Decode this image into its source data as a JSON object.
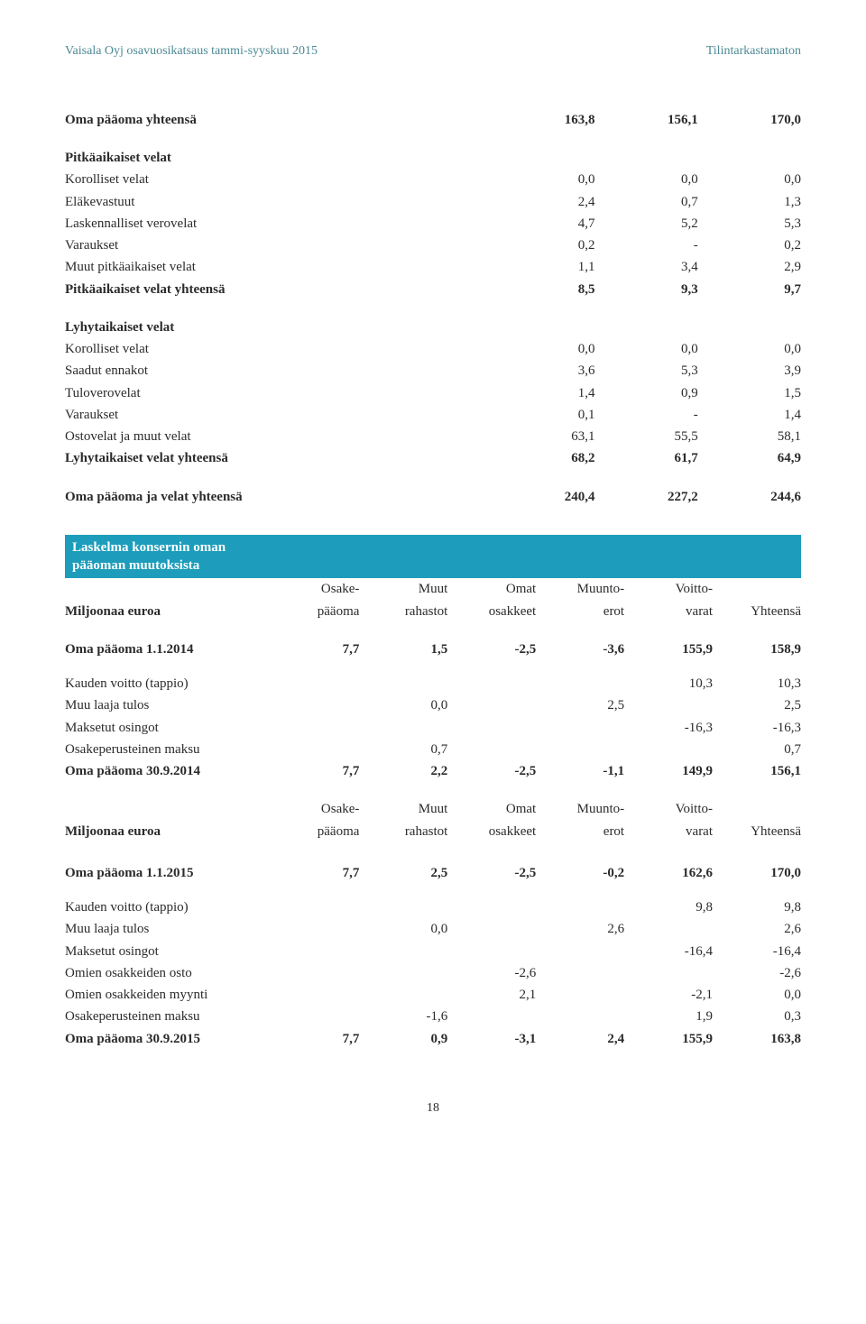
{
  "header": {
    "left": "Vaisala Oyj osavuosikatsaus tammi-syyskuu 2015",
    "right": "Tilintarkastamaton",
    "color": "#4d8a95"
  },
  "equity_total": {
    "label": "Oma pääoma yhteensä",
    "values": [
      "163,8",
      "156,1",
      "170,0"
    ]
  },
  "long_liab": {
    "heading": "Pitkäaikaiset velat",
    "rows": [
      {
        "label": "Korolliset velat",
        "v": [
          "0,0",
          "0,0",
          "0,0"
        ]
      },
      {
        "label": "Eläkevastuut",
        "v": [
          "2,4",
          "0,7",
          "1,3"
        ]
      },
      {
        "label": "Laskennalliset verovelat",
        "v": [
          "4,7",
          "5,2",
          "5,3"
        ]
      },
      {
        "label": "Varaukset",
        "v": [
          "0,2",
          "-",
          "0,2"
        ]
      },
      {
        "label": "Muut pitkäaikaiset velat",
        "v": [
          "1,1",
          "3,4",
          "2,9"
        ]
      }
    ],
    "total": {
      "label": "Pitkäaikaiset velat yhteensä",
      "v": [
        "8,5",
        "9,3",
        "9,7"
      ]
    }
  },
  "short_liab": {
    "heading": "Lyhytaikaiset velat",
    "rows": [
      {
        "label": "Korolliset velat",
        "v": [
          "0,0",
          "0,0",
          "0,0"
        ]
      },
      {
        "label": "Saadut ennakot",
        "v": [
          "3,6",
          "5,3",
          "3,9"
        ]
      },
      {
        "label": "Tuloverovelat",
        "v": [
          "1,4",
          "0,9",
          "1,5"
        ]
      },
      {
        "label": "Varaukset",
        "v": [
          "0,1",
          "-",
          "1,4"
        ]
      },
      {
        "label": "Ostovelat ja muut velat",
        "v": [
          "63,1",
          "55,5",
          "58,1"
        ]
      }
    ],
    "total": {
      "label": "Lyhytaikaiset velat yhteensä",
      "v": [
        "68,2",
        "61,7",
        "64,9"
      ]
    }
  },
  "grand_total": {
    "label": "Oma pääoma ja velat yhteensä",
    "v": [
      "240,4",
      "227,2",
      "244,6"
    ]
  },
  "banner": {
    "line1": "Laskelma konsernin oman",
    "line2": "pääoman muutoksista",
    "bg": "#1d9dbb",
    "fg": "#ffffff"
  },
  "cols7": {
    "row_label": "Miljoonaa euroa",
    "headers": [
      {
        "top": "Osake-",
        "bot": "pääoma"
      },
      {
        "top": "Muut",
        "bot": "rahastot"
      },
      {
        "top": "Omat",
        "bot": "osakkeet"
      },
      {
        "top": "Muunto-",
        "bot": "erot"
      },
      {
        "top": "Voitto-",
        "bot": "varat"
      },
      {
        "top": "",
        "bot": "Yhteensä"
      }
    ]
  },
  "equity2014": {
    "open": {
      "label": "Oma pääoma 1.1.2014",
      "v": [
        "7,7",
        "1,5",
        "-2,5",
        "-3,6",
        "155,9",
        "158,9"
      ]
    },
    "rows": [
      {
        "label": "Kauden voitto (tappio)",
        "v": [
          "",
          "",
          "",
          "",
          "10,3",
          "10,3"
        ]
      },
      {
        "label": "Muu laaja tulos",
        "v": [
          "",
          "0,0",
          "",
          "2,5",
          "",
          "2,5"
        ]
      },
      {
        "label": "Maksetut osingot",
        "v": [
          "",
          "",
          "",
          "",
          "-16,3",
          "-16,3"
        ]
      },
      {
        "label": "Osakeperusteinen maksu",
        "v": [
          "",
          "0,7",
          "",
          "",
          "",
          "0,7"
        ]
      }
    ],
    "close": {
      "label": "Oma pääoma 30.9.2014",
      "v": [
        "7,7",
        "2,2",
        "-2,5",
        "-1,1",
        "149,9",
        "156,1"
      ]
    }
  },
  "equity2015": {
    "open": {
      "label": "Oma pääoma 1.1.2015",
      "v": [
        "7,7",
        "2,5",
        "-2,5",
        "-0,2",
        "162,6",
        "170,0"
      ]
    },
    "rows": [
      {
        "label": "Kauden voitto (tappio)",
        "v": [
          "",
          "",
          "",
          "",
          "9,8",
          "9,8"
        ]
      },
      {
        "label": "Muu laaja tulos",
        "v": [
          "",
          "0,0",
          "",
          "2,6",
          "",
          "2,6"
        ]
      },
      {
        "label": "Maksetut osingot",
        "v": [
          "",
          "",
          "",
          "",
          "-16,4",
          "-16,4"
        ]
      },
      {
        "label": "Omien osakkeiden osto",
        "v": [
          "",
          "",
          "-2,6",
          "",
          "",
          "-2,6"
        ]
      },
      {
        "label": "Omien osakkeiden myynti",
        "v": [
          "",
          "",
          "2,1",
          "",
          "-2,1",
          "0,0"
        ]
      },
      {
        "label": "Osakeperusteinen maksu",
        "v": [
          "",
          "-1,6",
          "",
          "",
          "1,9",
          "0,3"
        ]
      }
    ],
    "close": {
      "label": "Oma pääoma 30.9.2015",
      "v": [
        "7,7",
        "0,9",
        "-3,1",
        "2,4",
        "155,9",
        "163,8"
      ]
    }
  },
  "page_number": "18"
}
